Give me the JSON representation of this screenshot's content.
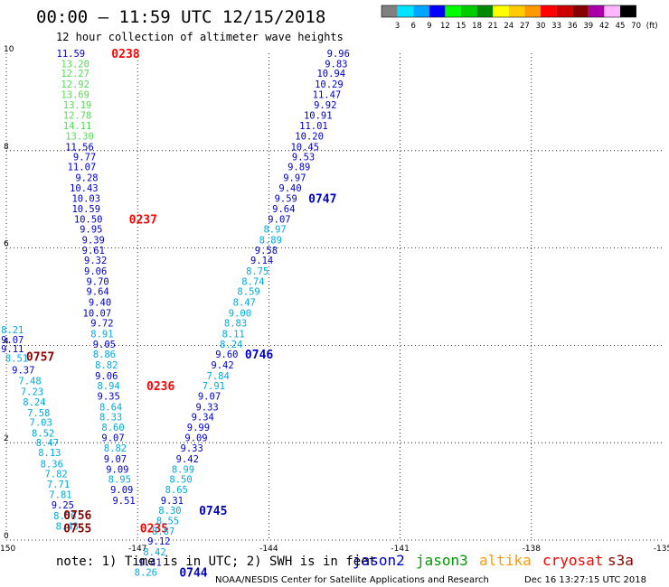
{
  "header": {
    "title": "00:00 – 11:59 UTC 12/15/2018",
    "subtitle": "12 hour collection of altimeter wave heights"
  },
  "color_scale": {
    "labels": [
      "3",
      "6",
      "9",
      "12",
      "15",
      "18",
      "21",
      "24",
      "27",
      "30",
      "33",
      "36",
      "39",
      "42",
      "45",
      "70",
      "(ft)"
    ],
    "colors": [
      "#808080",
      "#00e5ff",
      "#00a6ff",
      "#0000ff",
      "#00ff00",
      "#00cc00",
      "#008800",
      "#ffff00",
      "#ffcc00",
      "#ff9900",
      "#ff0000",
      "#cc0000",
      "#880000",
      "#aa00aa",
      "#ffb6ff",
      "#000000"
    ]
  },
  "notes": {
    "note_text": "note:  1) Time is in UTC; 2) SWH is in feet"
  },
  "satellites": [
    {
      "name": "jason2",
      "color": "#0000cc"
    },
    {
      "name": "jason3",
      "color": "#009900"
    },
    {
      "name": "altika",
      "color": "#ff9900"
    },
    {
      "name": "cryosat",
      "color": "#ff0000"
    },
    {
      "name": "s3a",
      "color": "#8b0000"
    }
  ],
  "footer": {
    "credit": "NOAA/NESDIS Center for Satellite Applications and Research",
    "generated": "Dec 16 13:27:15 UTC 2018"
  },
  "chart_data": {
    "type": "scatter",
    "xlim": [
      -150,
      -135
    ],
    "ylim": [
      0,
      10
    ],
    "x_ticks": [
      "-150",
      "-147",
      "-144",
      "-141",
      "-138",
      "-135"
    ],
    "x_tick_values": [
      -150,
      -147,
      -144,
      -141,
      -138,
      -135
    ],
    "y_ticks": [
      "0",
      "2",
      "4",
      "6",
      "8",
      "10"
    ],
    "y_tick_values": [
      0,
      2,
      4,
      6,
      8,
      10
    ],
    "grid": "dotted",
    "value_colors": {
      "dark": "#0000cc",
      "light": "#00aadd",
      "green": "#55dd55"
    },
    "passes": [
      {
        "id": "p1",
        "points": [
          {
            "lon": -149.6,
            "lat": 4.32,
            "v": "8.21",
            "c": "light"
          },
          {
            "lon": -149.6,
            "lat": 4.12,
            "v": "9.07",
            "c": "dark"
          },
          {
            "lon": -149.6,
            "lat": 3.93,
            "v": "9.11",
            "c": "dark"
          },
          {
            "lon": -149.5,
            "lat": 3.74,
            "v": "8.51",
            "c": "light"
          },
          {
            "lon": -149.35,
            "lat": 3.5,
            "v": "9.37",
            "c": "dark"
          },
          {
            "lon": -149.2,
            "lat": 3.27,
            "v": "7.48",
            "c": "light"
          },
          {
            "lon": -149.15,
            "lat": 3.05,
            "v": "7.23",
            "c": "light"
          },
          {
            "lon": -149.1,
            "lat": 2.84,
            "v": "8.24",
            "c": "light"
          },
          {
            "lon": -149.0,
            "lat": 2.62,
            "v": "7.58",
            "c": "light"
          },
          {
            "lon": -148.95,
            "lat": 2.42,
            "v": "7.03",
            "c": "light"
          },
          {
            "lon": -148.9,
            "lat": 2.2,
            "v": "8.52",
            "c": "light"
          },
          {
            "lon": -148.8,
            "lat": 2.0,
            "v": "8.47",
            "c": "light"
          },
          {
            "lon": -148.75,
            "lat": 1.8,
            "v": "8.13",
            "c": "light"
          },
          {
            "lon": -148.7,
            "lat": 1.57,
            "v": "8.36",
            "c": "light"
          },
          {
            "lon": -148.6,
            "lat": 1.36,
            "v": "7.82",
            "c": "light"
          },
          {
            "lon": -148.55,
            "lat": 1.15,
            "v": "7.71",
            "c": "light"
          },
          {
            "lon": -148.5,
            "lat": 0.94,
            "v": "7.81",
            "c": "light"
          },
          {
            "lon": -148.45,
            "lat": 0.72,
            "v": "9.25",
            "c": "dark"
          },
          {
            "lon": -148.4,
            "lat": 0.5,
            "v": "8.56",
            "c": "light"
          },
          {
            "lon": -148.35,
            "lat": 0.29,
            "v": "8.43",
            "c": "light"
          }
        ],
        "labels": [
          {
            "lon": -148.9,
            "lat": 3.78,
            "text": "0757",
            "color": "#8b0000"
          },
          {
            "lon": -148.05,
            "lat": 0.52,
            "text": "0756",
            "color": "#8b0000"
          },
          {
            "lon": -148.05,
            "lat": 0.25,
            "text": "0755",
            "color": "#8b0000"
          }
        ]
      },
      {
        "id": "p2",
        "points": [
          {
            "lon": -148.2,
            "lat": 10.0,
            "v": "11.59",
            "c": "dark"
          },
          {
            "lon": -148.1,
            "lat": 9.79,
            "v": "13.20",
            "c": "green"
          },
          {
            "lon": -148.1,
            "lat": 9.59,
            "v": "12.27",
            "c": "green"
          },
          {
            "lon": -148.1,
            "lat": 9.37,
            "v": "12.92",
            "c": "green"
          },
          {
            "lon": -148.1,
            "lat": 9.16,
            "v": "13.69",
            "c": "green"
          },
          {
            "lon": -148.05,
            "lat": 8.94,
            "v": "13.19",
            "c": "green"
          },
          {
            "lon": -148.05,
            "lat": 8.73,
            "v": "12.78",
            "c": "green"
          },
          {
            "lon": -148.05,
            "lat": 8.52,
            "v": "14.11",
            "c": "green"
          },
          {
            "lon": -148.0,
            "lat": 8.3,
            "v": "13.30",
            "c": "green"
          },
          {
            "lon": -148.0,
            "lat": 8.08,
            "v": "11.56",
            "c": "dark"
          },
          {
            "lon": -147.95,
            "lat": 7.88,
            "v": "9.77",
            "c": "dark"
          },
          {
            "lon": -147.95,
            "lat": 7.67,
            "v": "11.07",
            "c": "dark"
          },
          {
            "lon": -147.9,
            "lat": 7.45,
            "v": "9.28",
            "c": "dark"
          },
          {
            "lon": -147.9,
            "lat": 7.24,
            "v": "10.43",
            "c": "dark"
          },
          {
            "lon": -147.85,
            "lat": 7.02,
            "v": "10.03",
            "c": "dark"
          },
          {
            "lon": -147.85,
            "lat": 6.81,
            "v": "10.59",
            "c": "dark"
          },
          {
            "lon": -147.8,
            "lat": 6.6,
            "v": "10.50",
            "c": "dark"
          },
          {
            "lon": -147.8,
            "lat": 6.39,
            "v": "9.95",
            "c": "dark"
          },
          {
            "lon": -147.75,
            "lat": 6.17,
            "v": "9.39",
            "c": "dark"
          },
          {
            "lon": -147.75,
            "lat": 5.96,
            "v": "9.61",
            "c": "dark"
          },
          {
            "lon": -147.7,
            "lat": 5.75,
            "v": "9.32",
            "c": "dark"
          },
          {
            "lon": -147.7,
            "lat": 5.53,
            "v": "9.06",
            "c": "dark"
          },
          {
            "lon": -147.65,
            "lat": 5.32,
            "v": "9.70",
            "c": "dark"
          },
          {
            "lon": -147.65,
            "lat": 5.11,
            "v": "9.64",
            "c": "dark"
          },
          {
            "lon": -147.6,
            "lat": 4.89,
            "v": "9.40",
            "c": "dark"
          },
          {
            "lon": -147.6,
            "lat": 4.67,
            "v": "10.07",
            "c": "dark"
          },
          {
            "lon": -147.55,
            "lat": 4.46,
            "v": "9.72",
            "c": "dark"
          },
          {
            "lon": -147.55,
            "lat": 4.24,
            "v": "8.91",
            "c": "light"
          },
          {
            "lon": -147.5,
            "lat": 4.03,
            "v": "9.05",
            "c": "dark"
          },
          {
            "lon": -147.5,
            "lat": 3.82,
            "v": "8.86",
            "c": "light"
          },
          {
            "lon": -147.45,
            "lat": 3.6,
            "v": "8.82",
            "c": "light"
          },
          {
            "lon": -147.45,
            "lat": 3.38,
            "v": "9.06",
            "c": "dark"
          },
          {
            "lon": -147.4,
            "lat": 3.17,
            "v": "8.94",
            "c": "light"
          },
          {
            "lon": -147.4,
            "lat": 2.96,
            "v": "9.35",
            "c": "dark"
          },
          {
            "lon": -147.35,
            "lat": 2.74,
            "v": "8.64",
            "c": "light"
          },
          {
            "lon": -147.35,
            "lat": 2.53,
            "v": "8.33",
            "c": "light"
          },
          {
            "lon": -147.3,
            "lat": 2.32,
            "v": "8.60",
            "c": "light"
          },
          {
            "lon": -147.3,
            "lat": 2.11,
            "v": "9.07",
            "c": "dark"
          },
          {
            "lon": -147.25,
            "lat": 1.89,
            "v": "8.82",
            "c": "light"
          },
          {
            "lon": -147.25,
            "lat": 1.67,
            "v": "9.07",
            "c": "dark"
          },
          {
            "lon": -147.2,
            "lat": 1.46,
            "v": "9.09",
            "c": "dark"
          },
          {
            "lon": -147.15,
            "lat": 1.25,
            "v": "8.95",
            "c": "light"
          },
          {
            "lon": -147.1,
            "lat": 1.04,
            "v": "9.09",
            "c": "dark"
          },
          {
            "lon": -147.05,
            "lat": 0.82,
            "v": "9.51",
            "c": "dark"
          }
        ],
        "labels": [
          {
            "lon": -146.95,
            "lat": 10.0,
            "text": "0238",
            "color": "#ff0000"
          },
          {
            "lon": -146.55,
            "lat": 6.6,
            "text": "0237",
            "color": "#ff0000"
          },
          {
            "lon": -146.15,
            "lat": 3.17,
            "text": "0236",
            "color": "#ff0000"
          },
          {
            "lon": -146.3,
            "lat": 0.25,
            "text": "0235",
            "color": "#ff0000"
          }
        ]
      },
      {
        "id": "p3",
        "points": [
          {
            "lon": -142.15,
            "lat": 10.0,
            "v": "9.96",
            "c": "dark"
          },
          {
            "lon": -142.2,
            "lat": 9.79,
            "v": "9.83",
            "c": "dark"
          },
          {
            "lon": -142.25,
            "lat": 9.59,
            "v": "10.94",
            "c": "dark"
          },
          {
            "lon": -142.3,
            "lat": 9.37,
            "v": "10.29",
            "c": "dark"
          },
          {
            "lon": -142.35,
            "lat": 9.16,
            "v": "11.47",
            "c": "dark"
          },
          {
            "lon": -142.45,
            "lat": 8.94,
            "v": "9.92",
            "c": "dark"
          },
          {
            "lon": -142.55,
            "lat": 8.73,
            "v": "10.91",
            "c": "dark"
          },
          {
            "lon": -142.65,
            "lat": 8.52,
            "v": "11.01",
            "c": "dark"
          },
          {
            "lon": -142.75,
            "lat": 8.3,
            "v": "10.20",
            "c": "dark"
          },
          {
            "lon": -142.85,
            "lat": 8.08,
            "v": "10.45",
            "c": "dark"
          },
          {
            "lon": -142.95,
            "lat": 7.88,
            "v": "9.53",
            "c": "dark"
          },
          {
            "lon": -143.05,
            "lat": 7.67,
            "v": "9.89",
            "c": "dark"
          },
          {
            "lon": -143.15,
            "lat": 7.45,
            "v": "9.97",
            "c": "dark"
          },
          {
            "lon": -143.25,
            "lat": 7.24,
            "v": "9.40",
            "c": "dark"
          },
          {
            "lon": -143.35,
            "lat": 7.02,
            "v": "9.59",
            "c": "dark"
          },
          {
            "lon": -143.4,
            "lat": 6.81,
            "v": "9.64",
            "c": "dark"
          },
          {
            "lon": -143.5,
            "lat": 6.6,
            "v": "9.07",
            "c": "dark"
          },
          {
            "lon": -143.6,
            "lat": 6.39,
            "v": "8.97",
            "c": "light"
          },
          {
            "lon": -143.7,
            "lat": 6.17,
            "v": "8.89",
            "c": "light"
          },
          {
            "lon": -143.8,
            "lat": 5.96,
            "v": "9.58",
            "c": "dark"
          },
          {
            "lon": -143.9,
            "lat": 5.75,
            "v": "9.14",
            "c": "dark"
          },
          {
            "lon": -144.0,
            "lat": 5.53,
            "v": "8.75",
            "c": "light"
          },
          {
            "lon": -144.1,
            "lat": 5.32,
            "v": "8.74",
            "c": "light"
          },
          {
            "lon": -144.2,
            "lat": 5.11,
            "v": "8.59",
            "c": "light"
          },
          {
            "lon": -144.3,
            "lat": 4.89,
            "v": "8.47",
            "c": "light"
          },
          {
            "lon": -144.4,
            "lat": 4.67,
            "v": "9.00",
            "c": "light"
          },
          {
            "lon": -144.5,
            "lat": 4.46,
            "v": "8.83",
            "c": "light"
          },
          {
            "lon": -144.55,
            "lat": 4.24,
            "v": "8.11",
            "c": "light"
          },
          {
            "lon": -144.6,
            "lat": 4.03,
            "v": "8.24",
            "c": "light"
          },
          {
            "lon": -144.7,
            "lat": 3.82,
            "v": "9.60",
            "c": "dark"
          },
          {
            "lon": -144.8,
            "lat": 3.6,
            "v": "9.42",
            "c": "dark"
          },
          {
            "lon": -144.9,
            "lat": 3.38,
            "v": "7.84",
            "c": "light"
          },
          {
            "lon": -145.0,
            "lat": 3.17,
            "v": "7.91",
            "c": "light"
          },
          {
            "lon": -145.1,
            "lat": 2.96,
            "v": "9.07",
            "c": "dark"
          },
          {
            "lon": -145.15,
            "lat": 2.74,
            "v": "9.33",
            "c": "dark"
          },
          {
            "lon": -145.25,
            "lat": 2.53,
            "v": "9.34",
            "c": "dark"
          },
          {
            "lon": -145.35,
            "lat": 2.32,
            "v": "9.99",
            "c": "dark"
          },
          {
            "lon": -145.4,
            "lat": 2.11,
            "v": "9.09",
            "c": "dark"
          },
          {
            "lon": -145.5,
            "lat": 1.89,
            "v": "9.33",
            "c": "dark"
          },
          {
            "lon": -145.6,
            "lat": 1.67,
            "v": "9.42",
            "c": "dark"
          },
          {
            "lon": -145.7,
            "lat": 1.46,
            "v": "8.99",
            "c": "light"
          },
          {
            "lon": -145.75,
            "lat": 1.25,
            "v": "8.50",
            "c": "light"
          },
          {
            "lon": -145.85,
            "lat": 1.04,
            "v": "8.65",
            "c": "light"
          },
          {
            "lon": -145.95,
            "lat": 0.82,
            "v": "9.31",
            "c": "dark"
          },
          {
            "lon": -146.0,
            "lat": 0.61,
            "v": "8.30",
            "c": "light"
          },
          {
            "lon": -146.05,
            "lat": 0.4,
            "v": "8.55",
            "c": "light"
          },
          {
            "lon": -146.15,
            "lat": 0.19,
            "v": "8.87",
            "c": "light"
          },
          {
            "lon": -146.25,
            "lat": -0.02,
            "v": "9.12",
            "c": "dark"
          },
          {
            "lon": -146.35,
            "lat": -0.24,
            "v": "8.42",
            "c": "light"
          },
          {
            "lon": -146.45,
            "lat": -0.45,
            "v": "9.41",
            "c": "dark"
          },
          {
            "lon": -146.55,
            "lat": -0.66,
            "v": "8.26",
            "c": "light"
          }
        ],
        "labels": [
          {
            "lon": -142.45,
            "lat": 7.02,
            "text": "0747",
            "color": "#0000cc"
          },
          {
            "lon": -143.9,
            "lat": 3.82,
            "text": "0746",
            "color": "#0000cc"
          },
          {
            "lon": -144.95,
            "lat": 0.61,
            "text": "0745",
            "color": "#0000cc"
          },
          {
            "lon": -145.4,
            "lat": -0.66,
            "text": "0744",
            "color": "#0000cc"
          }
        ]
      }
    ]
  }
}
